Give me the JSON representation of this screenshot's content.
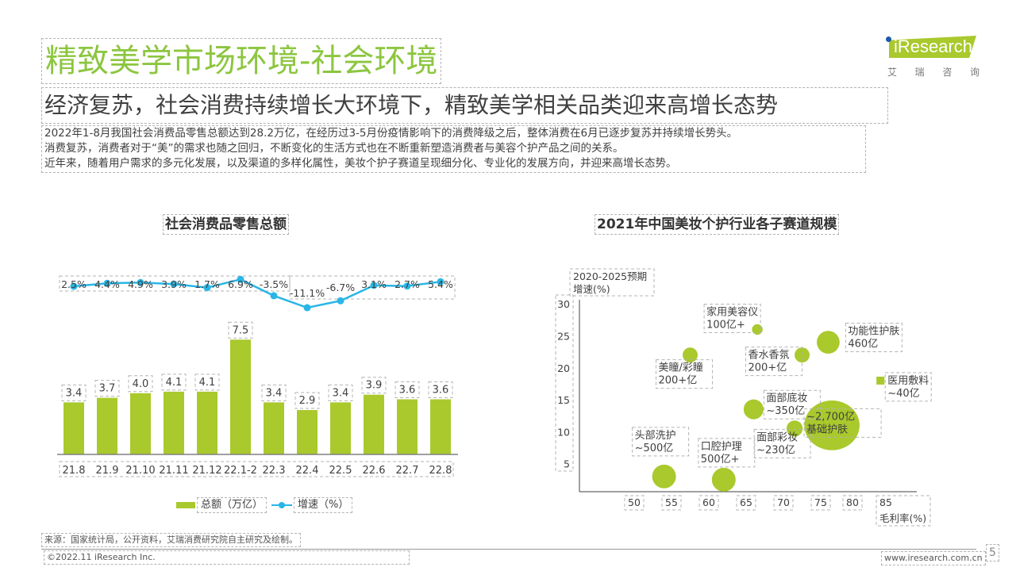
{
  "header": {
    "title": "精致美学市场环境-社会环境",
    "subtitle": "经济复苏，社会消费持续增长大环境下，精致美学相关品类迎来高增长态势",
    "body_lines": [
      "2022年1-8月我国社会消费品零售总额达到28.2万亿，在经历过3-5月份疫情影响下的消费降级之后，整体消费在6月已逐步复苏并持续增长势头。",
      "消费复苏，消费者对于“美”的需求也随之回归，不断变化的生活方式也在不断重新塑造消费者与美容个护产品之间的关系。",
      "近年来，随着用户需求的多元化发展，以及渠道的多样化属性，美妆个护子赛道呈现细分化、专业化的发展方向，并迎来高增长态势。"
    ]
  },
  "logo": {
    "brand": "iResearch",
    "cn_chars": [
      "艾",
      "瑞",
      "咨",
      "询"
    ]
  },
  "colors": {
    "accent_green": "#8cc63f",
    "bar_green": "#a9c92c",
    "line_blue": "#29b6e6",
    "logo_blue": "#1e5aa8"
  },
  "chart_data": [
    {
      "type": "bar",
      "title": "社会消费品零售总额",
      "categories": [
        "21.8",
        "21.9",
        "21.10",
        "21.11",
        "21.12",
        "22.1-2",
        "22.3",
        "22.4",
        "22.5",
        "22.6",
        "22.7",
        "22.8"
      ],
      "series": [
        {
          "name": "总额（万亿）",
          "type": "bar",
          "values": [
            3.4,
            3.7,
            4.0,
            4.1,
            4.1,
            7.5,
            3.4,
            2.9,
            3.4,
            3.9,
            3.6,
            3.6
          ],
          "labels": [
            "3.4",
            "3.7",
            "4.0",
            "4.1",
            "4.1",
            "7.5",
            "3.4",
            "2.9",
            "3.4",
            "3.9",
            "3.6",
            "3.6"
          ]
        },
        {
          "name": "增速（%）",
          "type": "line",
          "values": [
            2.5,
            4.4,
            4.9,
            3.9,
            1.7,
            6.9,
            -3.5,
            -11.1,
            -6.7,
            3.1,
            2.7,
            5.4
          ],
          "labels": [
            "2.5%",
            "4.4%",
            "4.9%",
            "3.9%",
            "1.7%",
            "6.9%",
            "-3.5%",
            "-11.1%",
            "-6.7%",
            "3.1%",
            "2.7%",
            "5.4%"
          ]
        }
      ],
      "legend": [
        "总额（万亿）",
        "增速（%）"
      ],
      "legend_position": "bottom",
      "xlabel": "",
      "ylabel": "",
      "ylim": [
        0,
        8
      ],
      "grid": false
    },
    {
      "type": "scatter",
      "subtype": "bubble",
      "title": "2021年中国美妆个护行业各子赛道规模",
      "xlabel": "毛利率(%)",
      "ylabel": "2020-2025预期增速(%)",
      "xlim": [
        45,
        90
      ],
      "ylim": [
        0,
        30
      ],
      "xticks": [
        50,
        55,
        60,
        65,
        70,
        75,
        80,
        85
      ],
      "yticks": [
        5,
        10,
        15,
        20,
        25,
        30
      ],
      "grid": false,
      "points": [
        {
          "name": "头部洗护",
          "size_label": "~500亿",
          "x": 54,
          "y": 3,
          "size": 500
        },
        {
          "name": "口腔护理",
          "size_label": "500亿+",
          "x": 62,
          "y": 2.5,
          "size": 500
        },
        {
          "name": "美瞳/彩瞳",
          "size_label": "200+亿",
          "x": 57.5,
          "y": 22,
          "size": 200
        },
        {
          "name": "家用美容仪",
          "size_label": "100亿+",
          "x": 66.5,
          "y": 26,
          "size": 100
        },
        {
          "name": "香水香氛",
          "size_label": "200+亿",
          "x": 72.5,
          "y": 22,
          "size": 200
        },
        {
          "name": "功能性护肤",
          "size_label": "460亿",
          "x": 76,
          "y": 24,
          "size": 460
        },
        {
          "name": "医用敷料",
          "size_label": "~40亿",
          "x": 83,
          "y": 18,
          "size": 40
        },
        {
          "name": "面部底妆",
          "size_label": "~350亿",
          "x": 66,
          "y": 13.5,
          "size": 350
        },
        {
          "name": "面部彩妆",
          "size_label": "~230亿",
          "x": 71.5,
          "y": 10.5,
          "size": 230
        },
        {
          "name": "基础护肤",
          "size_label": "~2,700亿",
          "x": 76.5,
          "y": 11,
          "size": 2700
        }
      ]
    }
  ],
  "footer": {
    "source": "来源：国家统计局，公开资料，艾瑞消费研究院自主研究及绘制。",
    "copyright": "©2022.11 iResearch Inc.",
    "website": "www.iresearch.com.cn",
    "page_number": "5"
  }
}
